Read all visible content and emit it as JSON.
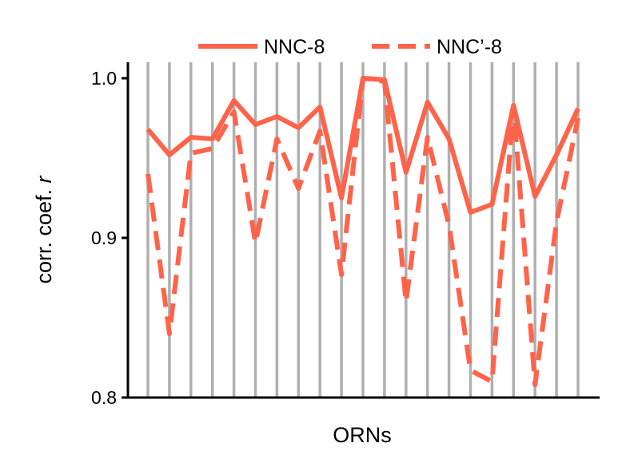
{
  "chart_data": {
    "type": "line",
    "xlabel": "ORNs",
    "ylabel_prefix": "corr. coef. ",
    "ylabel_var": "r",
    "ylim": [
      0.8,
      1.0
    ],
    "yticks": [
      0.8,
      0.9,
      1.0
    ],
    "ytick_labels": [
      "0.8",
      "0.9",
      "1.0"
    ],
    "x": [
      1,
      2,
      3,
      4,
      5,
      6,
      7,
      8,
      9,
      10,
      11,
      12,
      13,
      14,
      15,
      16,
      17,
      18,
      19,
      20,
      21
    ],
    "grid": "vertical",
    "legend_position": "top",
    "series": [
      {
        "name": "NNC-8",
        "style": "solid",
        "color": "#FF634A",
        "values": [
          0.968,
          0.952,
          0.963,
          0.962,
          0.986,
          0.971,
          0.976,
          0.969,
          0.982,
          0.925,
          1.0,
          0.999,
          0.941,
          0.985,
          0.962,
          0.916,
          0.921,
          0.983,
          0.926,
          0.952,
          0.981
        ]
      },
      {
        "name": "NNC’-8",
        "style": "dashed",
        "color": "#FF634A",
        "values": [
          0.94,
          0.84,
          0.953,
          0.956,
          0.979,
          0.897,
          0.962,
          0.931,
          0.967,
          0.877,
          1.0,
          0.998,
          0.86,
          0.963,
          0.908,
          0.817,
          0.81,
          0.983,
          0.808,
          0.91,
          0.975
        ]
      }
    ]
  }
}
